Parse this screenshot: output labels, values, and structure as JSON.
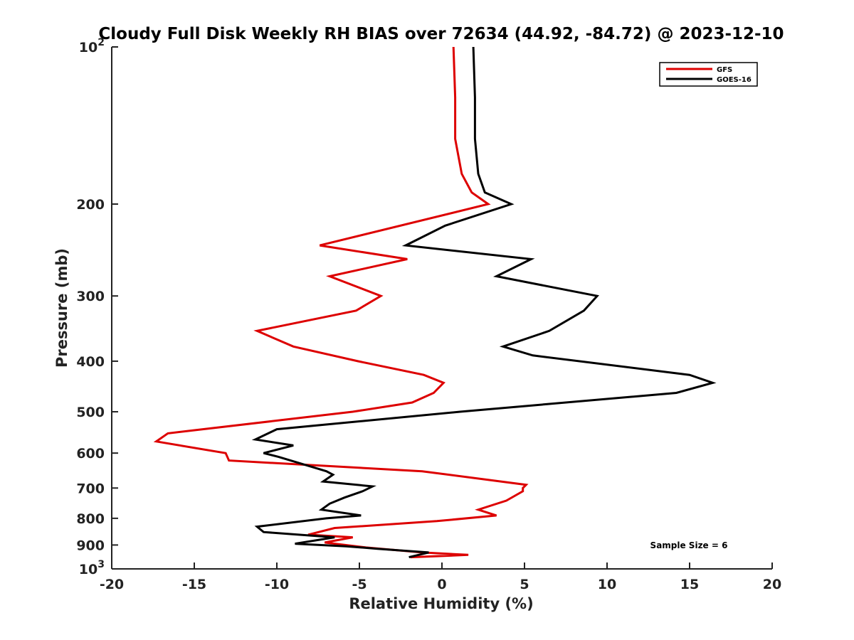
{
  "chart_data": {
    "type": "line",
    "title": "Cloudy Full Disk Weekly RH BIAS over 72634 (44.92, -84.72) @ 2023-12-10",
    "xlabel": "Relative Humidity (%)",
    "ylabel": "Pressure (mb)",
    "xlim": [
      -20,
      20
    ],
    "ylim": [
      100,
      1000
    ],
    "y_scale": "log",
    "y_reversed": true,
    "x_ticks": [
      "-20",
      "-15",
      "-10",
      "-5",
      "0",
      "5",
      "10",
      "15",
      "20"
    ],
    "x_tick_values": [
      -20,
      -15,
      -10,
      -5,
      0,
      5,
      10,
      15,
      20
    ],
    "y_ticks": [
      {
        "value": 100,
        "base": "10",
        "exp": "2"
      },
      {
        "value": 200,
        "label": "200"
      },
      {
        "value": 300,
        "label": "300"
      },
      {
        "value": 400,
        "label": "400"
      },
      {
        "value": 500,
        "label": "500"
      },
      {
        "value": 600,
        "label": "600"
      },
      {
        "value": 700,
        "label": "700"
      },
      {
        "value": 800,
        "label": "800"
      },
      {
        "value": 900,
        "label": "900"
      },
      {
        "value": 1000,
        "base": "10",
        "exp": "3"
      }
    ],
    "legend_position": "top-right",
    "grid": false,
    "annotation": "Sample Size = 6",
    "series": [
      {
        "name": "GFS",
        "color": "#dd0000",
        "points": [
          [
            0.7,
            100
          ],
          [
            0.8,
            125
          ],
          [
            0.8,
            150
          ],
          [
            1.2,
            175
          ],
          [
            1.8,
            190
          ],
          [
            2.8,
            200
          ],
          [
            -7.4,
            240
          ],
          [
            -2.1,
            255
          ],
          [
            -6.8,
            275
          ],
          [
            -3.7,
            300
          ],
          [
            -5.2,
            320
          ],
          [
            -11.2,
            350
          ],
          [
            -9.0,
            375
          ],
          [
            -5.1,
            400
          ],
          [
            -1.1,
            425
          ],
          [
            0.1,
            440
          ],
          [
            -0.5,
            460
          ],
          [
            -1.8,
            480
          ],
          [
            -5.4,
            500
          ],
          [
            -16.6,
            550
          ],
          [
            -17.3,
            570
          ],
          [
            -13.1,
            600
          ],
          [
            -12.9,
            620
          ],
          [
            -1.2,
            650
          ],
          [
            5.1,
            690
          ],
          [
            4.9,
            700
          ],
          [
            4.9,
            710
          ],
          [
            3.9,
            740
          ],
          [
            2.2,
            770
          ],
          [
            3.3,
            790
          ],
          [
            -0.3,
            810
          ],
          [
            -6.5,
            835
          ],
          [
            -8.1,
            860
          ],
          [
            -5.4,
            870
          ],
          [
            -7.1,
            890
          ],
          [
            -4.6,
            910
          ],
          [
            -1.2,
            930
          ],
          [
            1.6,
            940
          ],
          [
            -1.9,
            950
          ]
        ]
      },
      {
        "name": "GOES-16",
        "color": "#000000",
        "points": [
          [
            1.9,
            100
          ],
          [
            2.0,
            125
          ],
          [
            2.0,
            150
          ],
          [
            2.2,
            175
          ],
          [
            2.6,
            190
          ],
          [
            4.2,
            200
          ],
          [
            0.2,
            220
          ],
          [
            -2.2,
            240
          ],
          [
            5.4,
            255
          ],
          [
            3.3,
            275
          ],
          [
            9.4,
            300
          ],
          [
            8.6,
            320
          ],
          [
            6.5,
            350
          ],
          [
            3.7,
            375
          ],
          [
            5.5,
            390
          ],
          [
            15.0,
            425
          ],
          [
            16.4,
            440
          ],
          [
            14.2,
            460
          ],
          [
            1.1,
            500
          ],
          [
            -10.0,
            540
          ],
          [
            -11.3,
            565
          ],
          [
            -9.0,
            580
          ],
          [
            -10.8,
            600
          ],
          [
            -9.9,
            610
          ],
          [
            -7.0,
            650
          ],
          [
            -6.6,
            660
          ],
          [
            -7.2,
            680
          ],
          [
            -4.2,
            695
          ],
          [
            -4.8,
            710
          ],
          [
            -5.9,
            730
          ],
          [
            -6.8,
            750
          ],
          [
            -7.3,
            770
          ],
          [
            -4.9,
            790
          ],
          [
            -7.0,
            800
          ],
          [
            -11.2,
            830
          ],
          [
            -10.8,
            850
          ],
          [
            -6.5,
            870
          ],
          [
            -8.9,
            895
          ],
          [
            -5.8,
            905
          ],
          [
            -3.9,
            915
          ],
          [
            -0.8,
            930
          ],
          [
            -2.0,
            950
          ]
        ]
      }
    ]
  }
}
